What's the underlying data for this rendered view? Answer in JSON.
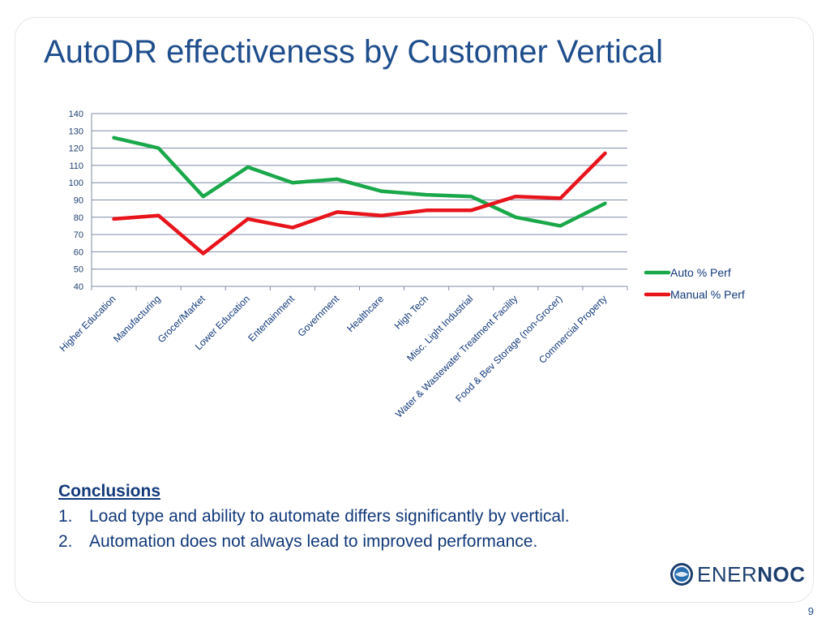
{
  "slide": {
    "title": "AutoDR effectiveness by Customer Vertical",
    "page_number": "9"
  },
  "conclusions": {
    "heading": "Conclusions",
    "items": [
      {
        "num": "1.",
        "text": "Load type and ability to automate differs significantly by vertical."
      },
      {
        "num": "2.",
        "text": "Automation does not always lead to improved performance."
      }
    ]
  },
  "logo": {
    "text_light": "ENER",
    "text_bold": "NOC",
    "icon": "enernoc-logo-icon"
  },
  "chart_data": {
    "type": "line",
    "title": "",
    "xlabel": "",
    "ylabel": "",
    "categories": [
      "Higher Education",
      "Manufacturing",
      "Grocer/Market",
      "Lower Education",
      "Entertainment",
      "Government",
      "Healthcare",
      "High Tech",
      "Misc. Light Industrial",
      "Water & Wastewater Treatment Facility",
      "Food & Bev Storage (non-Grocer)",
      "Commercial Property"
    ],
    "ylim": [
      40,
      140
    ],
    "yticks": [
      40,
      50,
      60,
      70,
      80,
      90,
      100,
      110,
      120,
      130,
      140
    ],
    "grid": true,
    "legend": "right",
    "series": [
      {
        "name": "Auto % Perf",
        "color": "#1aa84a",
        "values": [
          126,
          120,
          92,
          109,
          100,
          102,
          95,
          93,
          92,
          80,
          75,
          88
        ]
      },
      {
        "name": "Manual % Perf",
        "color": "#e8141c",
        "values": [
          79,
          81,
          59,
          79,
          74,
          83,
          81,
          84,
          84,
          92,
          91,
          117
        ]
      }
    ]
  }
}
